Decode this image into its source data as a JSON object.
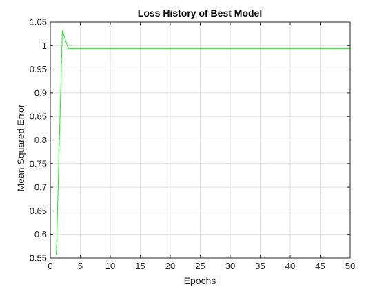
{
  "chart_data": {
    "type": "line",
    "title": "Loss History of Best Model",
    "xlabel": "Epochs",
    "ylabel": "Mean Squared Error",
    "xlim": [
      0,
      50
    ],
    "ylim": [
      0.55,
      1.05
    ],
    "xticks": [
      0,
      5,
      10,
      15,
      20,
      25,
      30,
      35,
      40,
      45,
      50
    ],
    "yticks": [
      0.55,
      0.6,
      0.65,
      0.7,
      0.75,
      0.8,
      0.85,
      0.9,
      0.95,
      1,
      1.05
    ],
    "xtick_labels": [
      "0",
      "5",
      "10",
      "15",
      "20",
      "25",
      "30",
      "35",
      "40",
      "45",
      "50"
    ],
    "ytick_labels": [
      "0.55",
      "0.6",
      "0.65",
      "0.7",
      "0.75",
      "0.8",
      "0.85",
      "0.9",
      "0.95",
      "1",
      "1.05"
    ],
    "grid": true,
    "series": [
      {
        "color": "#00ff00",
        "x": [
          1,
          2,
          3,
          4,
          5,
          10,
          15,
          20,
          25,
          30,
          35,
          40,
          45,
          50
        ],
        "y": [
          0.557,
          1.032,
          0.994,
          0.994,
          0.994,
          0.994,
          0.994,
          0.994,
          0.994,
          0.994,
          0.994,
          0.994,
          0.994,
          0.994
        ]
      }
    ]
  }
}
